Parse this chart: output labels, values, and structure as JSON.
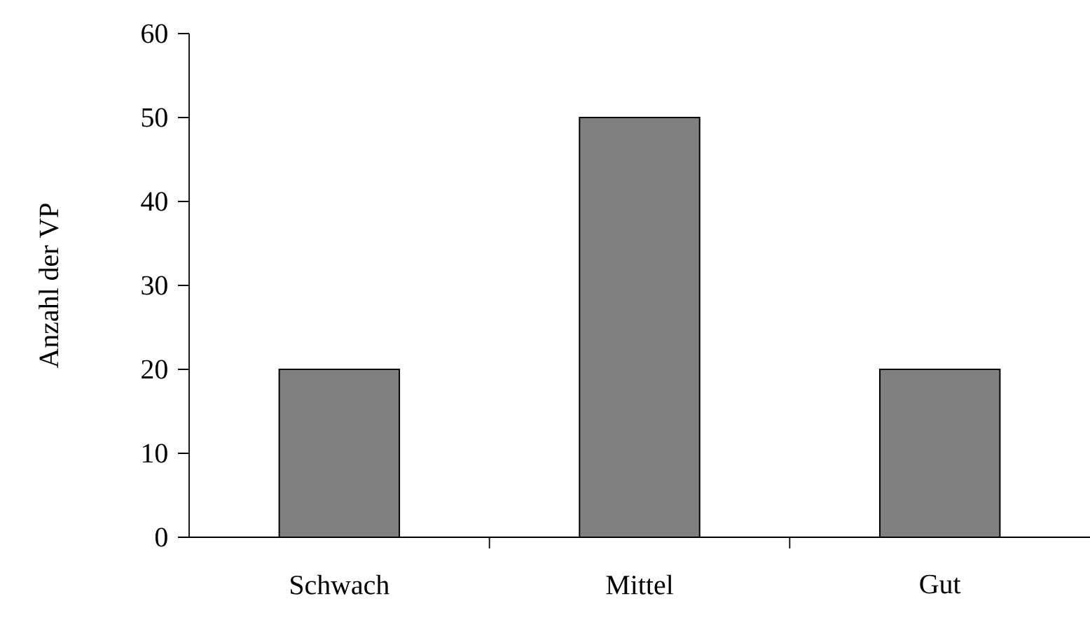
{
  "chart_data": {
    "type": "bar",
    "ylabel": "Anzahl der VP",
    "categories": [
      "Schwach",
      "Mittel",
      "Gut"
    ],
    "values": [
      20,
      50,
      20
    ],
    "color": "#808080",
    "ylim": [
      0,
      60
    ],
    "yticks": [
      0,
      10,
      20,
      30,
      40,
      50,
      60
    ]
  }
}
